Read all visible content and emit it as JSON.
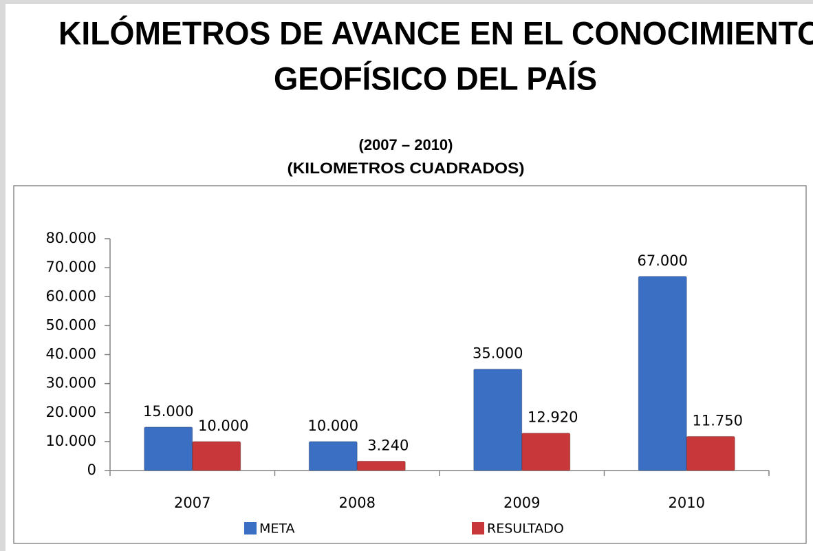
{
  "chart_data": {
    "type": "bar",
    "title": [
      "KILÓMETROS DE AVANCE EN EL CONOCIMIENTO",
      "GEOFÍSICO DEL PAÍS"
    ],
    "subtitle": [
      "(2007 – 2010)",
      "(KILOMETROS CUADRADOS)"
    ],
    "categories": [
      "2007",
      "2008",
      "2009",
      "2010"
    ],
    "series": [
      {
        "name": "META",
        "color": "#3a6fc4",
        "values": [
          15000,
          10000,
          35000,
          67000
        ],
        "value_labels": [
          "15.000",
          "10.000",
          "35.000",
          "67.000"
        ]
      },
      {
        "name": "RESULTADO",
        "color": "#c8383a",
        "values": [
          10000,
          3240,
          12920,
          11750
        ],
        "value_labels": [
          "10.000",
          "3.240",
          "12.920",
          "11.750"
        ]
      }
    ],
    "ylim": [
      0,
      80000
    ],
    "yticks": [
      {
        "value": 0,
        "label": "0"
      },
      {
        "value": 10000,
        "label": "10.000"
      },
      {
        "value": 20000,
        "label": "20.000"
      },
      {
        "value": 30000,
        "label": "30.000"
      },
      {
        "value": 40000,
        "label": "40.000"
      },
      {
        "value": 50000,
        "label": "50.000"
      },
      {
        "value": 60000,
        "label": "60.000"
      },
      {
        "value": 70000,
        "label": "70.000"
      },
      {
        "value": 80000,
        "label": "80.000"
      }
    ],
    "legend": "bottom",
    "grid": false
  }
}
